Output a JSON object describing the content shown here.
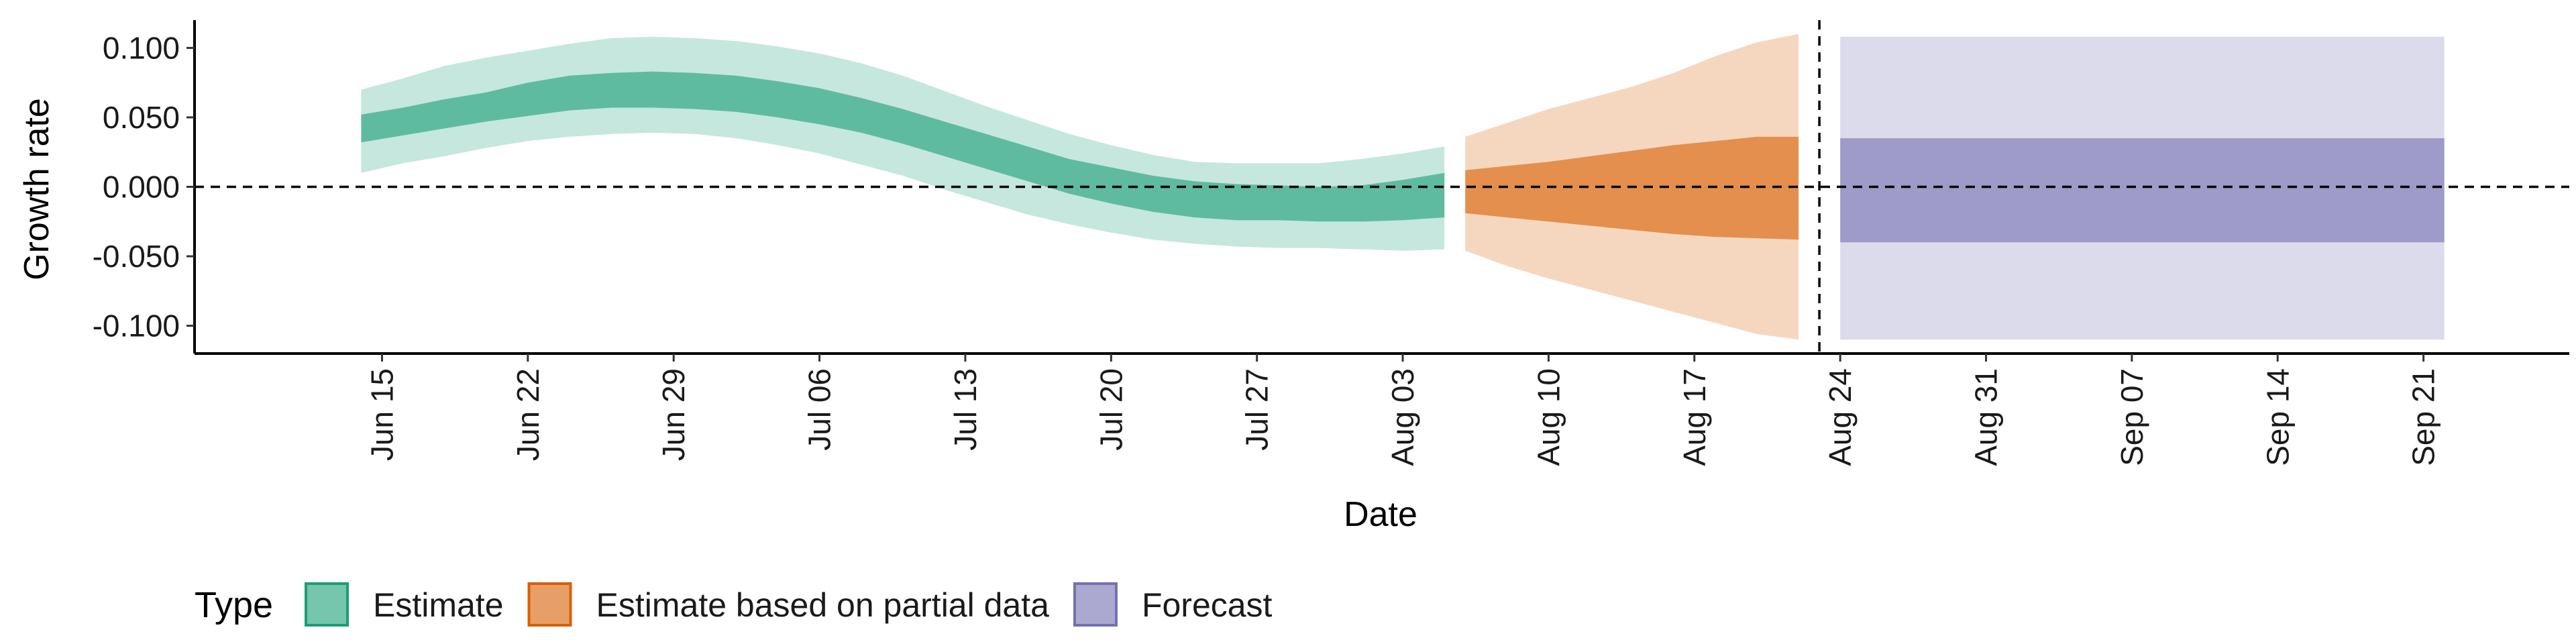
{
  "chart_data": {
    "type": "area",
    "xlabel": "Date",
    "ylabel": "Growth rate",
    "ylim": [
      -0.12,
      0.12
    ],
    "xlim": [
      "2020-06-06",
      "2020-09-28"
    ],
    "x_ticks": [
      "2020-06-15",
      "2020-06-22",
      "2020-06-29",
      "2020-07-06",
      "2020-07-13",
      "2020-07-20",
      "2020-07-27",
      "2020-08-03",
      "2020-08-10",
      "2020-08-17",
      "2020-08-24",
      "2020-08-31",
      "2020-09-07",
      "2020-09-14",
      "2020-09-21"
    ],
    "x_tick_labels": [
      "Jun 15",
      "Jun 22",
      "Jun 29",
      "Jul 06",
      "Jul 13",
      "Jul 20",
      "Jul 27",
      "Aug 03",
      "Aug 10",
      "Aug 17",
      "Aug 24",
      "Aug 31",
      "Sep 07",
      "Sep 14",
      "Sep 21"
    ],
    "y_ticks": [
      0.1,
      0.05,
      0.0,
      -0.05,
      -0.1
    ],
    "y_tick_labels": [
      "0.100",
      "0.050",
      "0.000",
      "-0.050",
      "-0.100"
    ],
    "reference_lines": {
      "horizontal_y": 0.0,
      "vertical_date": "2020-08-23"
    },
    "grid": false,
    "legend": {
      "title": "Type",
      "position": "bottom"
    },
    "series": [
      {
        "name": "Estimate",
        "color": "#1b9e77",
        "dates": [
          "2020-06-14",
          "2020-06-16",
          "2020-06-18",
          "2020-06-20",
          "2020-06-22",
          "2020-06-24",
          "2020-06-26",
          "2020-06-28",
          "2020-06-30",
          "2020-07-02",
          "2020-07-04",
          "2020-07-06",
          "2020-07-08",
          "2020-07-10",
          "2020-07-12",
          "2020-07-14",
          "2020-07-16",
          "2020-07-18",
          "2020-07-20",
          "2020-07-22",
          "2020-07-24",
          "2020-07-26",
          "2020-07-28",
          "2020-07-30",
          "2020-08-01",
          "2020-08-03",
          "2020-08-05"
        ],
        "inner_upper": [
          0.052,
          0.057,
          0.063,
          0.068,
          0.075,
          0.08,
          0.082,
          0.083,
          0.082,
          0.08,
          0.076,
          0.071,
          0.064,
          0.056,
          0.047,
          0.038,
          0.029,
          0.02,
          0.014,
          0.008,
          0.004,
          0.002,
          0.001,
          0.0,
          0.001,
          0.005,
          0.01
        ],
        "inner_lower": [
          0.032,
          0.037,
          0.042,
          0.047,
          0.051,
          0.055,
          0.057,
          0.057,
          0.056,
          0.054,
          0.05,
          0.045,
          0.039,
          0.031,
          0.022,
          0.013,
          0.004,
          -0.005,
          -0.012,
          -0.018,
          -0.022,
          -0.024,
          -0.024,
          -0.025,
          -0.025,
          -0.024,
          -0.022
        ],
        "outer_upper": [
          0.07,
          0.078,
          0.087,
          0.093,
          0.098,
          0.103,
          0.107,
          0.108,
          0.107,
          0.105,
          0.101,
          0.096,
          0.089,
          0.08,
          0.069,
          0.058,
          0.048,
          0.038,
          0.03,
          0.023,
          0.018,
          0.017,
          0.017,
          0.017,
          0.02,
          0.024,
          0.029
        ],
        "outer_lower": [
          0.01,
          0.017,
          0.022,
          0.028,
          0.033,
          0.036,
          0.038,
          0.039,
          0.038,
          0.035,
          0.03,
          0.024,
          0.016,
          0.008,
          -0.002,
          -0.011,
          -0.02,
          -0.027,
          -0.033,
          -0.038,
          -0.041,
          -0.043,
          -0.044,
          -0.044,
          -0.045,
          -0.046,
          -0.045
        ]
      },
      {
        "name": "Estimate based on partial data",
        "color": "#d95f02",
        "dates": [
          "2020-08-06",
          "2020-08-08",
          "2020-08-10",
          "2020-08-12",
          "2020-08-14",
          "2020-08-16",
          "2020-08-18",
          "2020-08-20",
          "2020-08-22"
        ],
        "inner_upper": [
          0.012,
          0.015,
          0.018,
          0.022,
          0.026,
          0.03,
          0.033,
          0.036,
          0.036
        ],
        "inner_lower": [
          -0.019,
          -0.022,
          -0.025,
          -0.028,
          -0.031,
          -0.034,
          -0.036,
          -0.037,
          -0.038
        ],
        "outer_upper": [
          0.036,
          0.046,
          0.056,
          0.064,
          0.072,
          0.082,
          0.094,
          0.104,
          0.11
        ],
        "outer_lower": [
          -0.046,
          -0.057,
          -0.066,
          -0.074,
          -0.082,
          -0.09,
          -0.098,
          -0.106,
          -0.11
        ]
      },
      {
        "name": "Forecast",
        "color": "#7570b3",
        "dates": [
          "2020-08-24",
          "2020-09-22"
        ],
        "inner_upper": [
          0.035,
          0.035
        ],
        "inner_lower": [
          -0.04,
          -0.04
        ],
        "outer_upper": [
          0.108,
          0.108
        ],
        "outer_lower": [
          -0.11,
          -0.11
        ]
      }
    ]
  }
}
